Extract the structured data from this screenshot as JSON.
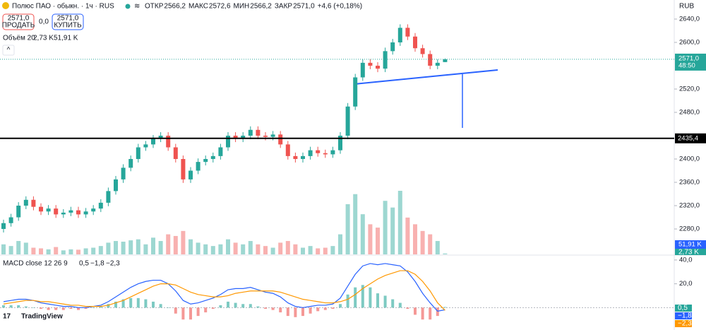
{
  "chart_data": {
    "type": "candlestick",
    "symbol": "Полюс ПАО · обыкн. · 1ч · RUS",
    "ohlc_labels": [
      "ОТКР",
      "МАКС",
      "МИН",
      "ЗАКР"
    ],
    "ohlc_values": [
      "2566,2",
      "2572,6",
      "2566,2",
      "2571,0"
    ],
    "change": "+4,6 (+0,18%)",
    "sell": {
      "price": "2571,0",
      "label": "ПРОДАТЬ"
    },
    "spread": "0,0",
    "buy": {
      "price": "2571,0",
      "label": "КУПИТЬ"
    },
    "currency": "RUB",
    "last_price": {
      "value": 2571.0,
      "label": "2571,0",
      "timer": "48:50"
    },
    "hline": {
      "value": 2435.4,
      "label": "2435,4"
    },
    "ylim": [
      2236.4,
      2672.7
    ],
    "yticks": [
      {
        "value": 2640,
        "label": "2640,0"
      },
      {
        "value": 2600,
        "label": "2600,0"
      },
      {
        "value": 2520,
        "label": "2520,0"
      },
      {
        "value": 2480,
        "label": "2480,0"
      },
      {
        "value": 2400,
        "label": "2400,0"
      },
      {
        "value": 2360,
        "label": "2360,0"
      },
      {
        "value": 2320,
        "label": "2320,0"
      },
      {
        "value": 2280,
        "label": "2280,0"
      }
    ],
    "up_color": "#26a69a",
    "down_color": "#ef5350",
    "open": [
      2280,
      2290,
      2300,
      2320,
      2330,
      2318,
      2310,
      2315,
      2305,
      2308,
      2312,
      2305,
      2310,
      2315,
      2325,
      2345,
      2365,
      2385,
      2400,
      2420,
      2425,
      2435,
      2440,
      2420,
      2400,
      2365,
      2380,
      2395,
      2400,
      2405,
      2420,
      2440,
      2435,
      2440,
      2450,
      2440,
      2438,
      2442,
      2425,
      2405,
      2400,
      2405,
      2415,
      2410,
      2408,
      2415,
      2440,
      2490,
      2540,
      2565,
      2560,
      2555,
      2585,
      2600,
      2625,
      2610,
      2590,
      2580,
      2560,
      2566.2
    ],
    "high": [
      2296,
      2306,
      2326,
      2336,
      2336,
      2324,
      2321,
      2321,
      2314,
      2318,
      2318,
      2316,
      2321,
      2331,
      2351,
      2371,
      2391,
      2406,
      2426,
      2431,
      2441,
      2446,
      2446,
      2426,
      2406,
      2386,
      2401,
      2406,
      2411,
      2426,
      2446,
      2446,
      2446,
      2456,
      2456,
      2446,
      2448,
      2448,
      2431,
      2411,
      2411,
      2421,
      2421,
      2416,
      2421,
      2446,
      2496,
      2546,
      2571,
      2571,
      2566,
      2591,
      2606,
      2631,
      2631,
      2616,
      2596,
      2586,
      2571,
      2572.6
    ],
    "low": [
      2274,
      2284,
      2294,
      2314,
      2312,
      2304,
      2304,
      2299,
      2299,
      2302,
      2299,
      2299,
      2304,
      2309,
      2319,
      2339,
      2359,
      2379,
      2394,
      2414,
      2419,
      2429,
      2414,
      2394,
      2359,
      2359,
      2374,
      2389,
      2394,
      2399,
      2414,
      2429,
      2429,
      2434,
      2434,
      2432,
      2432,
      2419,
      2399,
      2394,
      2394,
      2399,
      2404,
      2402,
      2402,
      2409,
      2434,
      2484,
      2534,
      2554,
      2549,
      2549,
      2579,
      2594,
      2604,
      2584,
      2574,
      2554,
      2554,
      2566.2
    ],
    "close": [
      2290,
      2300,
      2320,
      2330,
      2318,
      2310,
      2315,
      2305,
      2308,
      2312,
      2305,
      2310,
      2315,
      2325,
      2345,
      2365,
      2385,
      2400,
      2420,
      2425,
      2435,
      2440,
      2420,
      2400,
      2365,
      2380,
      2395,
      2400,
      2405,
      2420,
      2440,
      2435,
      2440,
      2450,
      2440,
      2438,
      2442,
      2425,
      2405,
      2400,
      2405,
      2415,
      2410,
      2408,
      2415,
      2440,
      2490,
      2540,
      2565,
      2560,
      2555,
      2585,
      2600,
      2625,
      2610,
      2590,
      2580,
      2560,
      2565,
      2571
    ],
    "volume": {
      "title": "Объём 20",
      "last_label": "2,73 K",
      "ma_label": "51,91 K",
      "values": [
        30,
        25,
        40,
        35,
        20,
        18,
        15,
        22,
        12,
        15,
        14,
        18,
        20,
        25,
        35,
        40,
        38,
        42,
        45,
        30,
        50,
        40,
        60,
        55,
        70,
        45,
        35,
        30,
        25,
        30,
        45,
        35,
        30,
        40,
        30,
        25,
        20,
        35,
        40,
        30,
        20,
        25,
        18,
        20,
        25,
        60,
        150,
        180,
        120,
        90,
        80,
        160,
        140,
        190,
        110,
        90,
        70,
        60,
        40,
        2.73
      ]
    },
    "macd": {
      "title": "MACD close 12 26 9",
      "labels": [
        "0,5",
        "−1,8",
        "−2,3"
      ],
      "ylim": [
        -18.8,
        44.1
      ],
      "yticks": [
        {
          "value": 40,
          "label": "40,0"
        },
        {
          "value": 20,
          "label": "20,0"
        }
      ],
      "series": [
        {
          "name": "MACD",
          "color": "#2962ff",
          "values": [
            5,
            6,
            7,
            7,
            6,
            4,
            3,
            2,
            1,
            1,
            0,
            0,
            1,
            2,
            5,
            9,
            13,
            17,
            20,
            22,
            23,
            23,
            20,
            14,
            6,
            3,
            4,
            6,
            8,
            11,
            15,
            16,
            16,
            17,
            15,
            13,
            12,
            9,
            4,
            1,
            0,
            1,
            2,
            2,
            3,
            8,
            18,
            28,
            35,
            37,
            36,
            37,
            36,
            35,
            30,
            22,
            12,
            4,
            -3,
            -1.8
          ]
        },
        {
          "name": "Signal",
          "color": "#ff9800",
          "values": [
            3,
            4,
            5,
            6,
            6,
            5,
            5,
            4,
            3,
            2,
            2,
            1,
            1,
            1,
            2,
            4,
            6,
            9,
            12,
            15,
            18,
            20,
            20,
            19,
            16,
            13,
            11,
            10,
            9,
            9,
            10,
            12,
            13,
            14,
            14,
            14,
            14,
            13,
            11,
            9,
            7,
            6,
            5,
            4,
            4,
            5,
            7,
            11,
            16,
            20,
            24,
            27,
            29,
            31,
            31,
            28,
            22,
            14,
            4,
            -2.3
          ]
        }
      ],
      "histogram": [
        2,
        2,
        2,
        1,
        0,
        -1,
        -2,
        -2,
        -2,
        -1,
        -2,
        -1,
        0,
        1,
        3,
        5,
        7,
        8,
        8,
        7,
        5,
        3,
        0,
        -5,
        -10,
        -10,
        -7,
        -4,
        -1,
        2,
        5,
        4,
        3,
        3,
        1,
        -1,
        -2,
        -4,
        -7,
        -8,
        -7,
        -5,
        -3,
        -2,
        -1,
        3,
        11,
        17,
        19,
        17,
        12,
        10,
        7,
        4,
        -1,
        -6,
        -10,
        -10,
        -7,
        0.5
      ]
    },
    "brand": "TradingView"
  }
}
